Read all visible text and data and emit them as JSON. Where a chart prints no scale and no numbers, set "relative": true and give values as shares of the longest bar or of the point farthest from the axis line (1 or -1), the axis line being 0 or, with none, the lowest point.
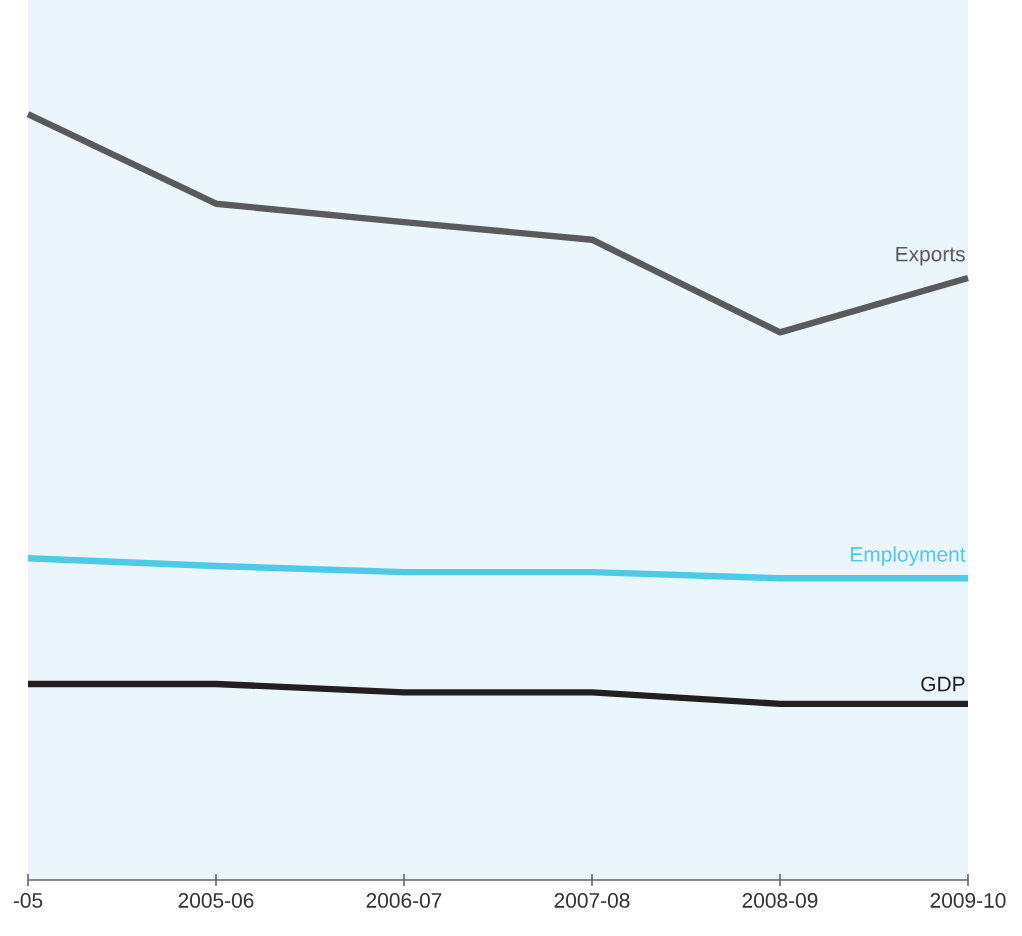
{
  "chart_data": {
    "type": "line",
    "relative": true,
    "categories": [
      "-05",
      "2005-06",
      "2006-07",
      "2007-08",
      "2008-09",
      "2009-10"
    ],
    "series": [
      {
        "name": "Exports",
        "color": "#5a5a5c",
        "values": [
          1,
          0.883,
          0.859,
          0.836,
          0.715,
          0.786
        ]
      },
      {
        "name": "Employment",
        "color": "#4ec9e8",
        "values": [
          0.42,
          0.41,
          0.402,
          0.402,
          0.394,
          0.394
        ]
      },
      {
        "name": "GDP",
        "color": "#231f20",
        "values": [
          0.256,
          0.256,
          0.245,
          0.245,
          0.23,
          0.23
        ]
      }
    ],
    "legend": false,
    "grid": false,
    "marker": "none",
    "line_style": "solid"
  }
}
